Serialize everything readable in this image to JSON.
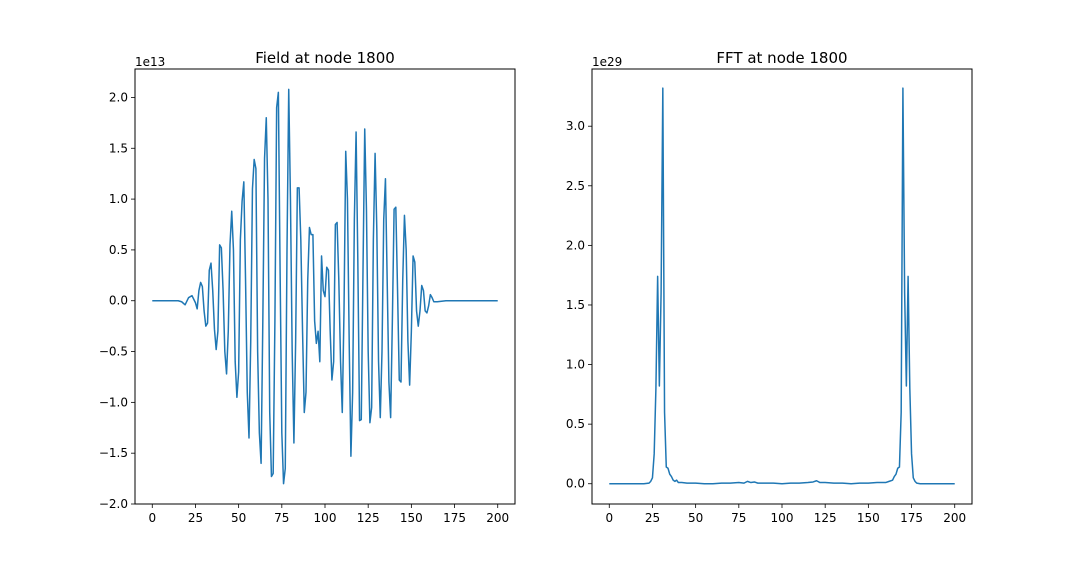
{
  "chart_data": [
    {
      "type": "line",
      "title": "Field at node 1800",
      "xlabel": "",
      "ylabel": "",
      "y_offset_label": "1e13",
      "xlim": [
        -10,
        210
      ],
      "ylim": [
        -2.0,
        2.28
      ],
      "x_ticks": [
        0,
        25,
        50,
        75,
        100,
        125,
        150,
        175,
        200
      ],
      "x_tick_labels": [
        "0",
        "25",
        "50",
        "75",
        "100",
        "125",
        "150",
        "175",
        "200"
      ],
      "y_ticks": [
        -2.0,
        -1.5,
        -1.0,
        -0.5,
        0.0,
        0.5,
        1.0,
        1.5,
        2.0
      ],
      "y_tick_labels": [
        "−2.0",
        "−1.5",
        "−1.0",
        "−0.5",
        "0.0",
        "0.5",
        "1.0",
        "1.5",
        "2.0"
      ],
      "grid": false,
      "series": [
        {
          "color": "#1f77b4",
          "points": [
            [
              0,
              0
            ],
            [
              5,
              0
            ],
            [
              10,
              0
            ],
            [
              15,
              0
            ],
            [
              17,
              -0.01
            ],
            [
              19,
              -0.04
            ],
            [
              21,
              0.03
            ],
            [
              23,
              0.05
            ],
            [
              25,
              -0.02
            ],
            [
              26,
              -0.08
            ],
            [
              27,
              0.1
            ],
            [
              28,
              0.18
            ],
            [
              29,
              0.14
            ],
            [
              30,
              -0.1
            ],
            [
              31,
              -0.25
            ],
            [
              32,
              -0.22
            ],
            [
              33,
              0.3
            ],
            [
              34,
              0.37
            ],
            [
              35,
              0.1
            ],
            [
              36,
              -0.28
            ],
            [
              37,
              -0.48
            ],
            [
              38,
              -0.3
            ],
            [
              39,
              0.55
            ],
            [
              40,
              0.52
            ],
            [
              41,
              0.1
            ],
            [
              42,
              -0.5
            ],
            [
              43,
              -0.72
            ],
            [
              44,
              -0.3
            ],
            [
              45,
              0.55
            ],
            [
              46,
              0.88
            ],
            [
              47,
              0.5
            ],
            [
              48,
              -0.6
            ],
            [
              49,
              -0.95
            ],
            [
              50,
              -0.7
            ],
            [
              51,
              0.6
            ],
            [
              52,
              0.98
            ],
            [
              53,
              1.17
            ],
            [
              54,
              0.2
            ],
            [
              55,
              -0.9
            ],
            [
              56,
              -1.35
            ],
            [
              57,
              -0.4
            ],
            [
              58,
              1.1
            ],
            [
              59,
              1.39
            ],
            [
              60,
              1.3
            ],
            [
              61,
              -0.5
            ],
            [
              62,
              -1.3
            ],
            [
              63,
              -1.6
            ],
            [
              64,
              -0.2
            ],
            [
              65,
              1.4
            ],
            [
              66,
              1.8
            ],
            [
              67,
              1.0
            ],
            [
              68,
              -1.1
            ],
            [
              69,
              -1.73
            ],
            [
              70,
              -1.7
            ],
            [
              71,
              -0.2
            ],
            [
              72,
              1.9
            ],
            [
              73,
              2.05
            ],
            [
              74,
              0.3
            ],
            [
              75,
              -1.3
            ],
            [
              76,
              -1.8
            ],
            [
              77,
              -1.65
            ],
            [
              78,
              0.5
            ],
            [
              79,
              2.08
            ],
            [
              80,
              1.0
            ],
            [
              81,
              -0.5
            ],
            [
              82,
              -1.4
            ],
            [
              83,
              -0.4
            ],
            [
              84,
              1.11
            ],
            [
              85,
              1.11
            ],
            [
              86,
              0.6
            ],
            [
              87,
              -0.3
            ],
            [
              88,
              -1.1
            ],
            [
              89,
              -0.9
            ],
            [
              90,
              0.2
            ],
            [
              91,
              0.72
            ],
            [
              92,
              0.65
            ],
            [
              93,
              0.65
            ],
            [
              94,
              -0.2
            ],
            [
              95,
              -0.42
            ],
            [
              96,
              -0.3
            ],
            [
              97,
              -0.6
            ],
            [
              98,
              0.44
            ],
            [
              99,
              0.1
            ],
            [
              100,
              0.04
            ],
            [
              101,
              0.33
            ],
            [
              102,
              0.3
            ],
            [
              103,
              -0.3
            ],
            [
              104,
              -0.78
            ],
            [
              105,
              -0.6
            ],
            [
              106,
              0.75
            ],
            [
              107,
              0.77
            ],
            [
              108,
              0.2
            ],
            [
              109,
              -0.6
            ],
            [
              110,
              -1.1
            ],
            [
              111,
              -0.1
            ],
            [
              112,
              1.47
            ],
            [
              113,
              1.0
            ],
            [
              114,
              -0.4
            ],
            [
              115,
              -1.53
            ],
            [
              116,
              -0.9
            ],
            [
              117,
              0.8
            ],
            [
              118,
              1.66
            ],
            [
              119,
              0.4
            ],
            [
              120,
              -1.18
            ],
            [
              121,
              -1.17
            ],
            [
              122,
              0.3
            ],
            [
              123,
              1.69
            ],
            [
              124,
              0.9
            ],
            [
              125,
              -0.5
            ],
            [
              126,
              -1.2
            ],
            [
              127,
              -1.05
            ],
            [
              128,
              0.6
            ],
            [
              129,
              1.45
            ],
            [
              130,
              0.7
            ],
            [
              131,
              -0.6
            ],
            [
              132,
              -1.15
            ],
            [
              133,
              -0.5
            ],
            [
              134,
              0.8
            ],
            [
              135,
              1.2
            ],
            [
              136,
              0.2
            ],
            [
              137,
              -0.8
            ],
            [
              138,
              -1.15
            ],
            [
              139,
              -0.2
            ],
            [
              140,
              0.9
            ],
            [
              141,
              0.92
            ],
            [
              142,
              0.1
            ],
            [
              143,
              -0.78
            ],
            [
              144,
              -0.8
            ],
            [
              145,
              0.2
            ],
            [
              146,
              0.84
            ],
            [
              147,
              0.5
            ],
            [
              148,
              -0.4
            ],
            [
              149,
              -0.83
            ],
            [
              150,
              -0.3
            ],
            [
              151,
              0.44
            ],
            [
              152,
              0.38
            ],
            [
              153,
              -0.1
            ],
            [
              154,
              -0.25
            ],
            [
              155,
              -0.1
            ],
            [
              156,
              0.15
            ],
            [
              157,
              0.1
            ],
            [
              158,
              -0.1
            ],
            [
              159,
              -0.12
            ],
            [
              160,
              -0.05
            ],
            [
              161,
              0.06
            ],
            [
              162,
              0.03
            ],
            [
              163,
              -0.01
            ],
            [
              165,
              -0.01
            ],
            [
              170,
              0
            ],
            [
              175,
              0
            ],
            [
              180,
              0
            ],
            [
              185,
              0
            ],
            [
              190,
              0
            ],
            [
              195,
              0
            ],
            [
              200,
              0
            ]
          ]
        }
      ]
    },
    {
      "type": "line",
      "title": "FFT at node 1800",
      "xlabel": "",
      "ylabel": "",
      "y_offset_label": "1e29",
      "xlim": [
        -10,
        210
      ],
      "ylim": [
        -0.17,
        3.48
      ],
      "x_ticks": [
        0,
        25,
        50,
        75,
        100,
        125,
        150,
        175,
        200
      ],
      "x_tick_labels": [
        "0",
        "25",
        "50",
        "75",
        "100",
        "125",
        "150",
        "175",
        "200"
      ],
      "y_ticks": [
        0.0,
        0.5,
        1.0,
        1.5,
        2.0,
        2.5,
        3.0
      ],
      "y_tick_labels": [
        "0.0",
        "0.5",
        "1.0",
        "1.5",
        "2.0",
        "2.5",
        "3.0"
      ],
      "grid": false,
      "series": [
        {
          "color": "#1f77b4",
          "points": [
            [
              0,
              0
            ],
            [
              5,
              0
            ],
            [
              10,
              0
            ],
            [
              15,
              0
            ],
            [
              20,
              0
            ],
            [
              23,
              0.005
            ],
            [
              24,
              0.02
            ],
            [
              25,
              0.05
            ],
            [
              26,
              0.25
            ],
            [
              27,
              0.8
            ],
            [
              28,
              1.74
            ],
            [
              29,
              0.82
            ],
            [
              30,
              1.6
            ],
            [
              31,
              3.32
            ],
            [
              32,
              0.6
            ],
            [
              33,
              0.14
            ],
            [
              34,
              0.13
            ],
            [
              35,
              0.08
            ],
            [
              36,
              0.06
            ],
            [
              37,
              0.03
            ],
            [
              38,
              0.02
            ],
            [
              39,
              0.03
            ],
            [
              40,
              0.01
            ],
            [
              42,
              0.01
            ],
            [
              45,
              0.005
            ],
            [
              50,
              0.005
            ],
            [
              55,
              0
            ],
            [
              60,
              0
            ],
            [
              65,
              0.005
            ],
            [
              70,
              0.005
            ],
            [
              75,
              0.01
            ],
            [
              78,
              0.005
            ],
            [
              80,
              0.02
            ],
            [
              82,
              0.01
            ],
            [
              84,
              0.015
            ],
            [
              86,
              0.005
            ],
            [
              90,
              0.005
            ],
            [
              95,
              0.005
            ],
            [
              100,
              0
            ],
            [
              105,
              0.005
            ],
            [
              110,
              0.005
            ],
            [
              115,
              0.01
            ],
            [
              118,
              0.015
            ],
            [
              120,
              0.025
            ],
            [
              122,
              0.01
            ],
            [
              125,
              0.01
            ],
            [
              130,
              0.005
            ],
            [
              135,
              0.005
            ],
            [
              140,
              0
            ],
            [
              145,
              0.005
            ],
            [
              150,
              0.005
            ],
            [
              155,
              0.01
            ],
            [
              160,
              0.01
            ],
            [
              162,
              0.02
            ],
            [
              164,
              0.03
            ],
            [
              165,
              0.06
            ],
            [
              166,
              0.08
            ],
            [
              167,
              0.13
            ],
            [
              168,
              0.14
            ],
            [
              169,
              0.6
            ],
            [
              170,
              3.32
            ],
            [
              171,
              1.6
            ],
            [
              172,
              0.82
            ],
            [
              173,
              1.74
            ],
            [
              174,
              0.8
            ],
            [
              175,
              0.25
            ],
            [
              176,
              0.05
            ],
            [
              177,
              0.02
            ],
            [
              178,
              0.005
            ],
            [
              180,
              0
            ],
            [
              185,
              0
            ],
            [
              190,
              0
            ],
            [
              195,
              0
            ],
            [
              200,
              0
            ]
          ]
        }
      ]
    }
  ]
}
